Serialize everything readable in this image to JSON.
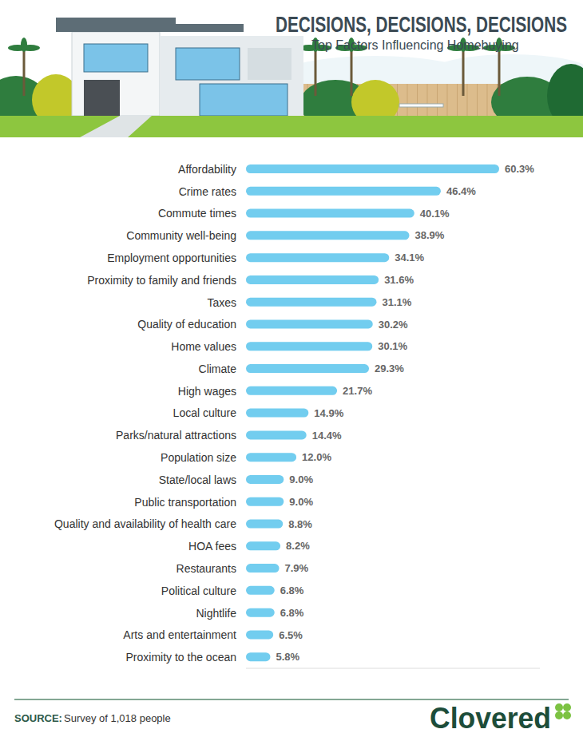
{
  "chart_data": {
    "type": "bar",
    "title": "DECISIONS, DECISIONS, DECISIONS",
    "subtitle": "Top Factors Influencing Homebuying",
    "categories": [
      "Affordability",
      "Crime rates",
      "Commute times",
      "Community well-being",
      "Employment opportunities",
      "Proximity to family and friends",
      "Taxes",
      "Quality of education",
      "Home values",
      "Climate",
      "High wages",
      "Local culture",
      "Parks/natural attractions",
      "Population size",
      "State/local laws",
      "Public transportation",
      "Quality and availability of health care",
      "HOA fees",
      "Restaurants",
      "Political culture",
      "Nightlife",
      "Arts and entertainment",
      "Proximity to the ocean"
    ],
    "values": [
      60.3,
      46.4,
      40.1,
      38.9,
      34.1,
      31.6,
      31.1,
      30.2,
      30.1,
      29.3,
      21.7,
      14.9,
      14.4,
      12.0,
      9.0,
      9.0,
      8.8,
      8.2,
      7.9,
      6.8,
      6.8,
      6.5,
      5.8
    ],
    "value_labels": [
      "60.3%",
      "46.4%",
      "40.1%",
      "38.9%",
      "34.1%",
      "31.6%",
      "31.1%",
      "30.2%",
      "30.1%",
      "29.3%",
      "21.7%",
      "14.9%",
      "14.4%",
      "12.0%",
      "9.0%",
      "9.0%",
      "8.8%",
      "8.2%",
      "7.9%",
      "6.8%",
      "6.8%",
      "6.5%",
      "5.8%"
    ],
    "color": "#72cdef",
    "orientation": "horizontal",
    "data_labels": true,
    "tick_labels": "y",
    "xlim": [
      0,
      70
    ],
    "source": {
      "label": "SOURCE:",
      "text": "Survey of 1,018 people"
    },
    "logo": "Clovered"
  }
}
